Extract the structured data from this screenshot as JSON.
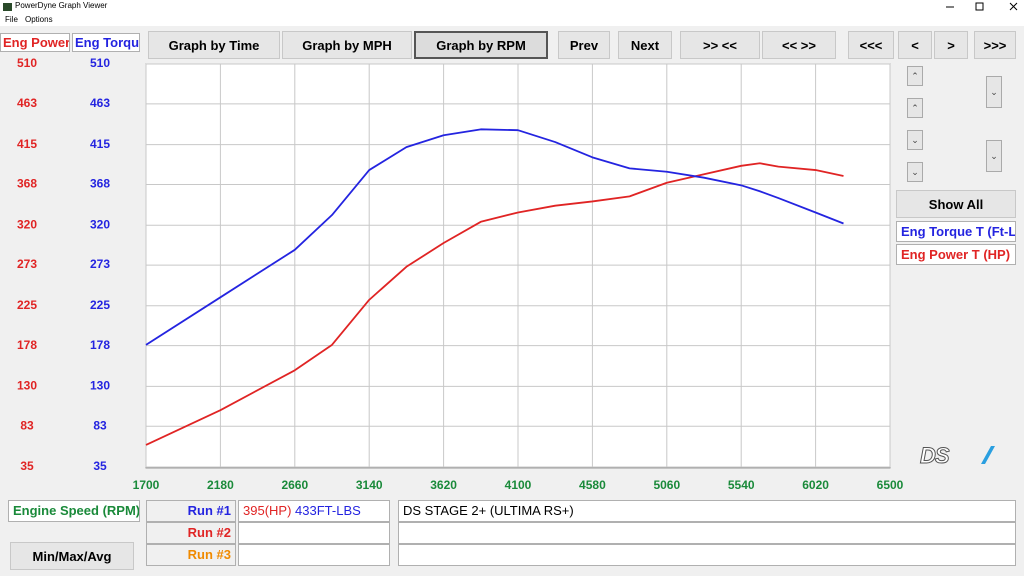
{
  "window": {
    "title": "PowerDyne Graph Viewer",
    "menu": [
      "File",
      "Options"
    ]
  },
  "toolbar": [
    "Graph by Time",
    "Graph by MPH",
    "Graph by RPM",
    "Prev",
    "Next",
    ">> <<",
    "<< >>",
    "<<<",
    "<",
    ">",
    ">>>"
  ],
  "chart_data": {
    "type": "line",
    "y_label": "Eng Power",
    "y2_label": "Eng Torque",
    "x_label": "Engine Speed (RPM)",
    "x": [
      1700,
      2180,
      2660,
      2900,
      3140,
      3380,
      3620,
      3860,
      4100,
      4340,
      4580,
      4820,
      5060,
      5300,
      5540,
      5660,
      5780,
      6020,
      6200
    ],
    "series": [
      {
        "name": "Eng Power T (HP)",
        "color": "#e02424",
        "values": [
          61,
          102,
          149,
          179,
          232,
          271,
          299,
          324,
          335,
          343,
          348,
          354,
          370,
          380,
          390,
          393,
          389,
          385,
          378
        ]
      },
      {
        "name": "Eng Torque T (Ft-Lb)",
        "color": "#2424e0",
        "axis": "y2",
        "values": [
          179,
          235,
          291,
          332,
          385,
          412,
          426,
          433,
          432,
          418,
          400,
          387,
          383,
          376,
          367,
          360,
          352,
          335,
          322
        ]
      }
    ],
    "xlim": [
      1700,
      6500
    ],
    "xticks": [
      1700,
      2180,
      2660,
      3140,
      3620,
      4100,
      4580,
      5060,
      5540,
      6020,
      6500
    ],
    "ylim": [
      35,
      510
    ],
    "yticks": [
      510,
      463,
      415,
      368,
      320,
      273,
      225,
      178,
      130,
      83,
      35
    ],
    "y2lim": [
      35,
      510
    ],
    "y2ticks": [
      510,
      463,
      415,
      368,
      320,
      273,
      225,
      178,
      130,
      83,
      35
    ],
    "grid": true
  },
  "side_panel": {
    "show_all": "Show All"
  },
  "runs": {
    "labels": [
      "Run #1",
      "Run #2",
      "Run #3"
    ],
    "run1_power": "395(HP)",
    "run1_torque": "433FT-LBS",
    "description": "DS STAGE 2+ (ULTIMA RS+)"
  },
  "min_max_avg": "Min/Max/Avg",
  "logo": "DS"
}
